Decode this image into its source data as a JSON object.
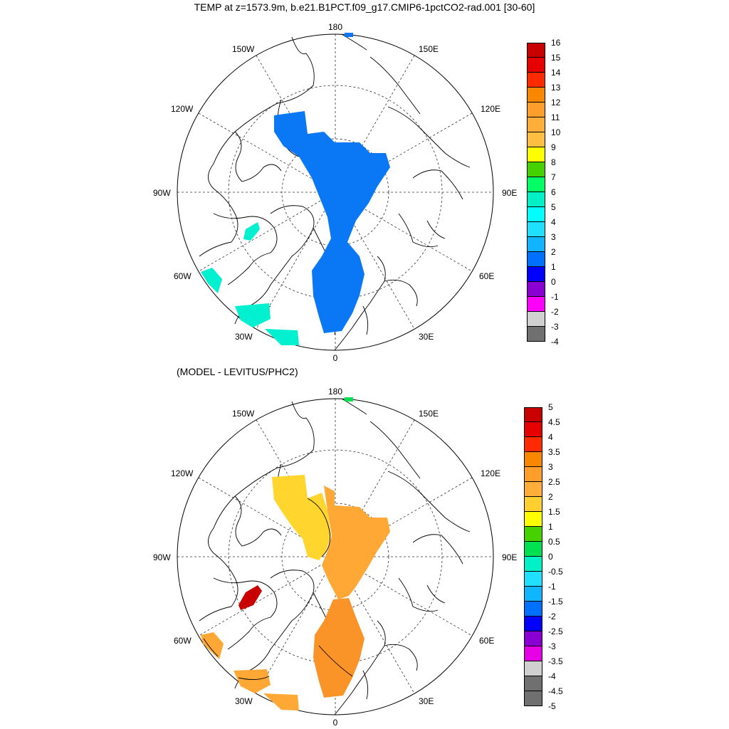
{
  "title": "TEMP at z=1573.9m, b.e21.B1PCT.f09_g17.CMIP6-1pctCO2-rad.001 [30-60]",
  "lower_title": "(MODEL - LEVITUS/PHC2)",
  "longitude_labels": [
    "180",
    "150E",
    "120E",
    "90E",
    "60E",
    "30E",
    "0",
    "30W",
    "60W",
    "90W",
    "120W",
    "150W"
  ],
  "top_panel": {
    "legend_labels": [
      "16",
      "15",
      "14",
      "13",
      "12",
      "11",
      "10",
      "9",
      "8",
      "7",
      "6",
      "5",
      "4",
      "3",
      "2",
      "1",
      "0",
      "-1",
      "-2",
      "-3",
      "-4"
    ],
    "legend_colors": [
      "#c80000",
      "#e60000",
      "#ff2a00",
      "#fa8700",
      "#ff9e2a",
      "#ffae3a",
      "#ffbf40",
      "#ffff00",
      "#46d200",
      "#00ff64",
      "#00f0c8",
      "#00ffff",
      "#20e0ff",
      "#10b4ff",
      "#0070ff",
      "#0000ff",
      "#8a00d2",
      "#ff00ff",
      "#d0d0d0",
      "#707070"
    ]
  },
  "bottom_panel": {
    "legend_labels": [
      "5",
      "4.5",
      "4",
      "3.5",
      "3",
      "2.5",
      "2",
      "1.5",
      "1",
      "0.5",
      "0",
      "-0.5",
      "-1",
      "-1.5",
      "-2",
      "-2.5",
      "-3",
      "-3.5",
      "-4",
      "-4.5",
      "-5"
    ],
    "legend_colors": [
      "#c80000",
      "#e60000",
      "#ff2a00",
      "#fa8700",
      "#ff9e2a",
      "#ffae3a",
      "#ffd030",
      "#ffff00",
      "#46d200",
      "#00e050",
      "#00f0c8",
      "#20e0ff",
      "#10b4ff",
      "#0070ff",
      "#0000ff",
      "#8a00d2",
      "#e600e6",
      "#d0d0d0",
      "#707070",
      "#707070"
    ]
  },
  "colors": {
    "top_basin": "#0a78f5",
    "top_warm_patch": "#00f0d0",
    "bottom_yellow": "#ffd52e",
    "bottom_orange": "#ffa836",
    "bottom_dark_orange": "#fa9428",
    "bottom_red": "#c80000"
  }
}
